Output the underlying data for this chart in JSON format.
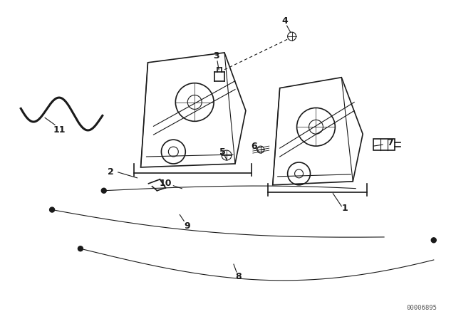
{
  "background_color": "#ffffff",
  "line_color": "#1a1a1a",
  "part_number_text": "00006895",
  "fig_width": 6.4,
  "fig_height": 4.48,
  "dpi": 100
}
